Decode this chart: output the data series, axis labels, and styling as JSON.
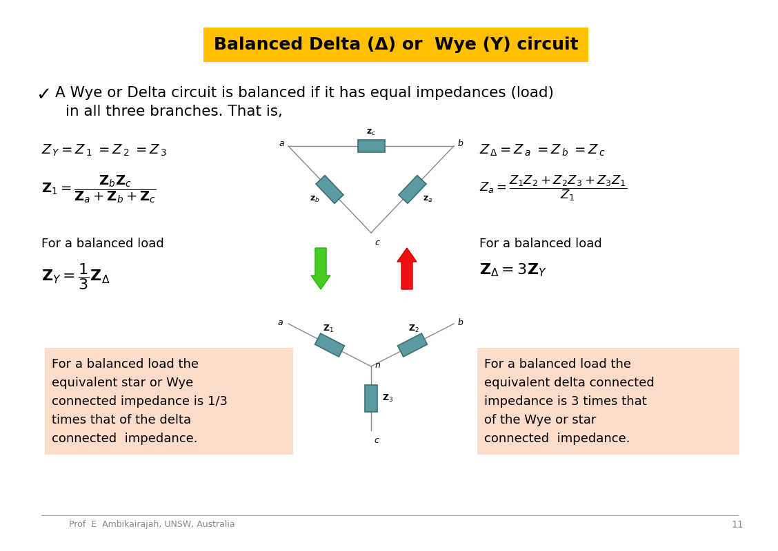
{
  "title": "Balanced Delta (Δ) or  Wye (Y) circuit",
  "title_bg": "#FFC000",
  "title_color": "#000000",
  "bg_color": "#FFFFFF",
  "footer": "Prof  E  Ambikairajah, UNSW, Australia",
  "page_num": "11",
  "resistor_color": "#5B9AA0",
  "resistor_edge": "#3a7070",
  "left_box_bg": "#FDDCCC",
  "right_box_bg": "#FDDCCC",
  "left_box_line1": "For a balanced load the",
  "left_box_line2": "equivalent star or Wye ",
  "left_box_line3": "connected impedance is 1/3",
  "left_box_line4": "times that of the delta",
  "left_box_line5": "connected  impedance.",
  "right_box_line1": "For a balanced load the",
  "right_box_line2": "equivalent delta connected",
  "right_box_line3": "impedance is 3 times that",
  "right_box_line4": "of the Wye or star",
  "right_box_line5": "connected  impedance."
}
